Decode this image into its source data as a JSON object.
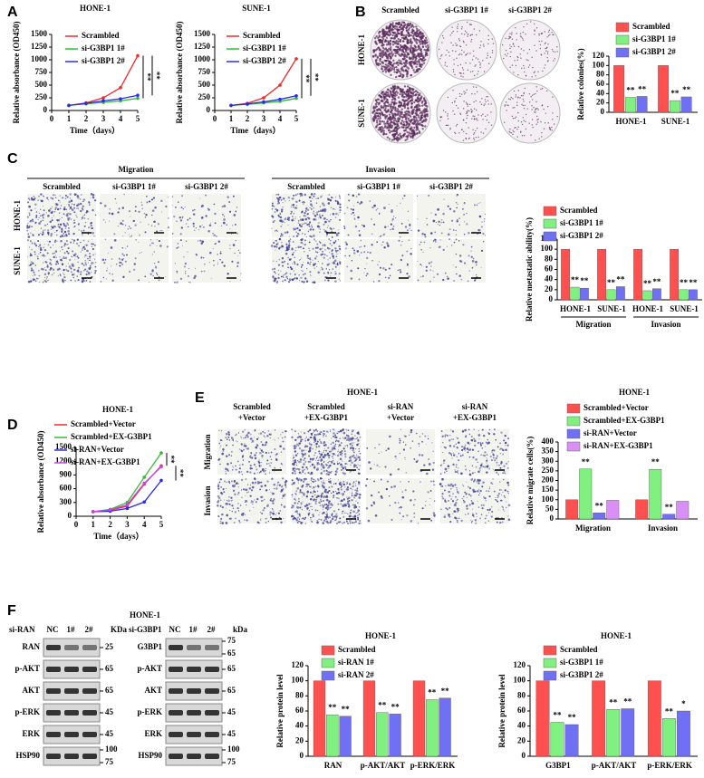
{
  "figure": {
    "panel_labels": [
      "A",
      "B",
      "C",
      "D",
      "E",
      "F"
    ],
    "B": {
      "columns": [
        "Scrambled",
        "si-G3BP1 1#",
        "si-G3BP1 2#"
      ],
      "rows": [
        "HONE-1",
        "SUNE-1"
      ]
    },
    "C": {
      "groups": [
        "Migration",
        "Invasion"
      ],
      "columns": [
        "Scrambled",
        "si-G3BP1 1#",
        "si-G3BP1 2#"
      ],
      "rows": [
        "HONE-1",
        "SUNE-1"
      ]
    },
    "E": {
      "title": "HONE-1",
      "columns": [
        [
          "Scrambled",
          "+Vector"
        ],
        [
          "Scrambled",
          "+EX-G3BP1"
        ],
        [
          "si-RAN",
          "+Vector"
        ],
        [
          "si-RAN",
          "+EX-G3BP1"
        ]
      ],
      "rows": [
        "Migration",
        "Invasion"
      ]
    },
    "F": {
      "title": "HONE-1",
      "left": {
        "header": "si-RAN",
        "lanes": [
          "NC",
          "1#",
          "2#"
        ],
        "unit": "KDa",
        "rows": [
          "RAN",
          "p-AKT",
          "AKT",
          "p-ERK",
          "ERK",
          "HSP90"
        ],
        "markers": [
          [
            25
          ],
          [
            65
          ],
          [
            65
          ],
          [
            45
          ],
          [
            45
          ],
          [
            100,
            75
          ]
        ]
      },
      "right": {
        "header": "si-G3BP1",
        "lanes": [
          "NC",
          "1#",
          "2#"
        ],
        "unit": "kDa",
        "rows": [
          "G3BP1",
          "p-AKT",
          "AKT",
          "p-ERK",
          "ERK",
          "HSP90"
        ],
        "markers": [
          [
            75,
            65
          ],
          [
            65
          ],
          [
            65
          ],
          [
            45
          ],
          [
            45
          ],
          [
            100,
            75
          ]
        ]
      }
    }
  },
  "chart_data": [
    {
      "type": "line",
      "title": "HONE-1",
      "xlabel": "Time（days）",
      "ylabel": "Relative absorbance (OD450)",
      "x": [
        1,
        2,
        3,
        4,
        5
      ],
      "xlim": [
        0,
        5
      ],
      "xticks": [
        0,
        1,
        2,
        3,
        4,
        5
      ],
      "ylim": [
        0,
        1500
      ],
      "yticks": [
        0,
        250,
        500,
        750,
        1000,
        1250,
        1500
      ],
      "series": [
        {
          "name": "Scrambled",
          "color": "#ee2a2a",
          "values": [
            100,
            150,
            250,
            450,
            1080
          ]
        },
        {
          "name": "si-G3BP1 1#",
          "color": "#33bb33",
          "values": [
            100,
            130,
            160,
            190,
            240
          ]
        },
        {
          "name": "si-G3BP1 2#",
          "color": "#2a2aee",
          "values": [
            100,
            140,
            190,
            230,
            300
          ]
        }
      ],
      "annotations": [
        "**",
        "**"
      ]
    },
    {
      "type": "line",
      "title": "SUNE-1",
      "xlabel": "Time（days）",
      "ylabel": "Relative absorbance (OD450)",
      "x": [
        1,
        2,
        3,
        4,
        5
      ],
      "xlim": [
        0,
        5
      ],
      "xticks": [
        0,
        1,
        2,
        3,
        4,
        5
      ],
      "ylim": [
        0,
        1500
      ],
      "yticks": [
        0,
        250,
        500,
        750,
        1000,
        1250,
        1500
      ],
      "series": [
        {
          "name": "Scrambled",
          "color": "#ee2a2a",
          "values": [
            100,
            140,
            250,
            500,
            1020
          ]
        },
        {
          "name": "si-G3BP1 1#",
          "color": "#33bb33",
          "values": [
            100,
            120,
            150,
            180,
            240
          ]
        },
        {
          "name": "si-G3BP1 2#",
          "color": "#2a2aee",
          "values": [
            100,
            130,
            170,
            220,
            290
          ]
        }
      ],
      "annotations": [
        "**",
        "**"
      ]
    },
    {
      "type": "bar",
      "ylabel": "Relative colonies(%)",
      "categories": [
        "HONE-1",
        "SUNE-1"
      ],
      "ylim": [
        0,
        120
      ],
      "yticks": [
        0,
        20,
        40,
        60,
        80,
        100,
        120
      ],
      "series": [
        {
          "name": "Scrambled",
          "color": "#ff5050",
          "values": [
            100,
            100
          ]
        },
        {
          "name": "si-G3BP1 1#",
          "color": "#80f080",
          "values": [
            32,
            25
          ],
          "sig": [
            "**",
            "**"
          ]
        },
        {
          "name": "si-G3BP1 2#",
          "color": "#7070f5",
          "values": [
            34,
            33
          ],
          "sig": [
            "**",
            "**"
          ]
        }
      ]
    },
    {
      "type": "bar",
      "ylabel": "Relative metastatic ability(%)",
      "categories": [
        "HONE-1",
        "SUNE-1",
        "HONE-1",
        "SUNE-1"
      ],
      "group_labels": [
        "Migration",
        "Invasion"
      ],
      "ylim": [
        0,
        120
      ],
      "yticks": [
        0,
        20,
        40,
        60,
        80,
        100,
        120
      ],
      "series": [
        {
          "name": "Scrambled",
          "color": "#ff5050",
          "values": [
            100,
            100,
            100,
            100
          ]
        },
        {
          "name": "si-G3BP1 1#",
          "color": "#80f080",
          "values": [
            25,
            20,
            18,
            20
          ],
          "sig": [
            "**",
            "**",
            "**",
            "**"
          ]
        },
        {
          "name": "si-G3BP1 2#",
          "color": "#7070f5",
          "values": [
            23,
            26,
            22,
            20
          ],
          "sig": [
            "**",
            "**",
            "**",
            "**"
          ]
        }
      ]
    },
    {
      "type": "line",
      "title": "HONE-1",
      "xlabel": "Time（days）",
      "ylabel": "Relative absorbance (OD450)",
      "x": [
        1,
        2,
        3,
        4,
        5
      ],
      "xlim": [
        0,
        5
      ],
      "xticks": [
        0,
        1,
        2,
        3,
        4,
        5
      ],
      "ylim": [
        0,
        1500
      ],
      "yticks": [
        0,
        300,
        600,
        900,
        1200,
        1500
      ],
      "series": [
        {
          "name": "Scrambled+Vector",
          "color": "#ee2a2a",
          "values": [
            100,
            130,
            220,
            700,
            1100
          ]
        },
        {
          "name": "Scrambled+EX-G3BP1",
          "color": "#33bb33",
          "values": [
            100,
            150,
            300,
            850,
            1380
          ]
        },
        {
          "name": "si-RAN+Vector",
          "color": "#2a2aee",
          "values": [
            100,
            110,
            170,
            310,
            780
          ]
        },
        {
          "name": "si-RAN+EX-G3BP1",
          "color": "#cc44dd",
          "values": [
            100,
            140,
            250,
            720,
            1080
          ]
        }
      ],
      "annotations": [
        "**",
        "**"
      ]
    },
    {
      "type": "bar",
      "title": "HONE-1",
      "ylabel": "Relative migrate cells(%)",
      "categories": [
        "Migration",
        "Invasion"
      ],
      "ylim": [
        0,
        400
      ],
      "yticks": [
        0,
        50,
        100,
        150,
        200,
        250,
        300,
        350,
        400
      ],
      "series": [
        {
          "name": "Scrambled+Vector",
          "color": "#ff5050",
          "values": [
            100,
            100
          ]
        },
        {
          "name": "Scrambled+EX-G3BP1",
          "color": "#80f080",
          "values": [
            260,
            258
          ],
          "sig": [
            "**",
            "**"
          ]
        },
        {
          "name": "si-RAN+Vector",
          "color": "#7070f5",
          "values": [
            32,
            25
          ],
          "sig": [
            "**",
            "**"
          ]
        },
        {
          "name": "si-RAN+EX-G3BP1",
          "color": "#d890f5",
          "values": [
            97,
            92
          ]
        }
      ]
    },
    {
      "type": "bar",
      "title": "HONE-1",
      "ylabel": "Relative protein level",
      "categories": [
        "RAN",
        "p-AKT/AKT",
        "p-ERK/ERK"
      ],
      "ylim": [
        0,
        120
      ],
      "yticks": [
        0,
        20,
        40,
        60,
        80,
        100,
        120
      ],
      "series": [
        {
          "name": "Scrambled",
          "color": "#ff5050",
          "values": [
            100,
            100,
            100
          ]
        },
        {
          "name": "si-RAN 1#",
          "color": "#80f080",
          "values": [
            55,
            58,
            75
          ],
          "sig": [
            "**",
            "**",
            "**"
          ]
        },
        {
          "name": "si-RAN 2#",
          "color": "#7070f5",
          "values": [
            53,
            56,
            77
          ],
          "sig": [
            "**",
            "**",
            "**"
          ]
        }
      ]
    },
    {
      "type": "bar",
      "title": "HONE-1",
      "ylabel": "Relative protein level",
      "categories": [
        "G3BP1",
        "p-AKT/AKT",
        "p-ERK/ERK"
      ],
      "ylim": [
        0,
        120
      ],
      "yticks": [
        0,
        20,
        40,
        60,
        80,
        100,
        120
      ],
      "series": [
        {
          "name": "Scrambled",
          "color": "#ff5050",
          "values": [
            100,
            100,
            100
          ]
        },
        {
          "name": "si-G3BP1 1#",
          "color": "#80f080",
          "values": [
            45,
            62,
            50
          ],
          "sig": [
            "**",
            "**",
            "**"
          ]
        },
        {
          "name": "si-G3BP1 2#",
          "color": "#7070f5",
          "values": [
            42,
            63,
            60
          ],
          "sig": [
            "**",
            "**",
            "*"
          ]
        }
      ]
    }
  ]
}
